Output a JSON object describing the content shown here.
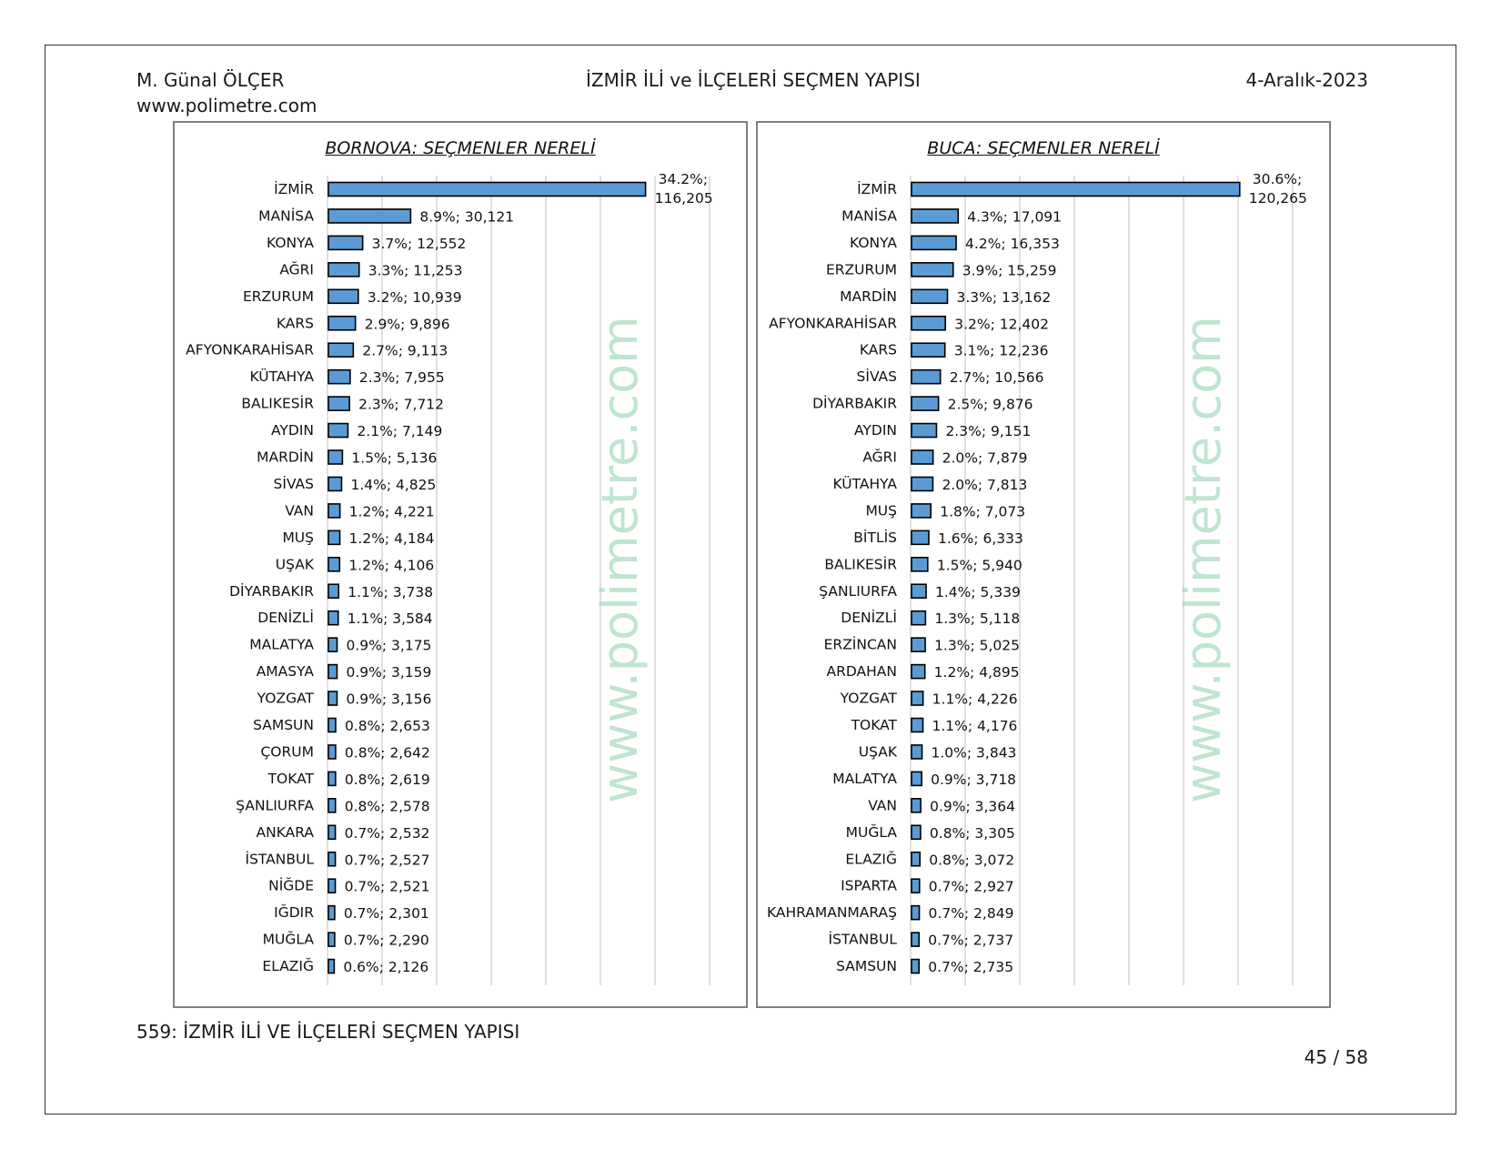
{
  "header": {
    "author": "M. Günal ÖLÇER",
    "website": "www.polimetre.com",
    "title": "İZMİR İLİ ve İLÇELERİ SEÇMEN YAPISI",
    "date": "4-Aralık-2023"
  },
  "footer": {
    "caption": "559: İZMİR İLİ VE İLÇELERİ SEÇMEN YAPISI",
    "page": "45 / 58"
  },
  "watermark": "www.polimetre.com",
  "colors": {
    "bar": "#5B9BD5",
    "bar_border": "#000000",
    "grid": "#d0d0d0",
    "watermark": "#a8dcc0"
  },
  "chart_data": [
    {
      "type": "bar",
      "orientation": "horizontal",
      "title": "BORNOVA: SEÇMENLER NERELİ",
      "grid": true,
      "categories": [
        "İZMİR",
        "MANİSA",
        "KONYA",
        "AĞRI",
        "ERZURUM",
        "KARS",
        "AFYONKARAHİSAR",
        "KÜTAHYA",
        "BALIKESİR",
        "AYDIN",
        "MARDİN",
        "SİVAS",
        "VAN",
        "MUŞ",
        "UŞAK",
        "DİYARBAKIR",
        "DENİZLİ",
        "MALATYA",
        "AMASYA",
        "YOZGAT",
        "SAMSUN",
        "ÇORUM",
        "TOKAT",
        "ŞANLIURFA",
        "ANKARA",
        "İSTANBUL",
        "NİĞDE",
        "IĞDIR",
        "MUĞLA",
        "ELAZIĞ"
      ],
      "values": [
        116205,
        30121,
        12552,
        11253,
        10939,
        9896,
        9113,
        7955,
        7712,
        7149,
        5136,
        4825,
        4221,
        4184,
        4106,
        3738,
        3584,
        3175,
        3159,
        3156,
        2653,
        2642,
        2619,
        2578,
        2532,
        2527,
        2521,
        2301,
        2290,
        2126
      ],
      "percents": [
        "34.2%",
        "8.9%",
        "3.7%",
        "3.3%",
        "3.2%",
        "2.9%",
        "2.7%",
        "2.3%",
        "2.3%",
        "2.1%",
        "1.5%",
        "1.4%",
        "1.2%",
        "1.2%",
        "1.2%",
        "1.1%",
        "1.1%",
        "0.9%",
        "0.9%",
        "0.9%",
        "0.8%",
        "0.8%",
        "0.8%",
        "0.8%",
        "0.7%",
        "0.7%",
        "0.7%",
        "0.7%",
        "0.7%",
        "0.6%"
      ],
      "data_labels": [
        "34.2%; 116,205",
        "8.9%; 30,121",
        "3.7%; 12,552",
        "3.3%; 11,253",
        "3.2%; 10,939",
        "2.9%; 9,896",
        "2.7%; 9,113",
        "2.3%; 7,955",
        "2.3%; 7,712",
        "2.1%; 7,149",
        "1.5%; 5,136",
        "1.4%; 4,825",
        "1.2%; 4,221",
        "1.2%; 4,184",
        "1.2%; 4,106",
        "1.1%; 3,738",
        "1.1%; 3,584",
        "0.9%; 3,175",
        "0.9%; 3,159",
        "0.9%; 3,156",
        "0.8%; 2,653",
        "0.8%; 2,642",
        "0.8%; 2,619",
        "0.8%; 2,578",
        "0.7%; 2,532",
        "0.7%; 2,527",
        "0.7%; 2,521",
        "0.7%; 2,301",
        "0.7%; 2,290",
        "0.6%; 2,126"
      ],
      "xlim": [
        0,
        140000
      ]
    },
    {
      "type": "bar",
      "orientation": "horizontal",
      "title": "BUCA: SEÇMENLER NERELİ",
      "grid": true,
      "categories": [
        "İZMİR",
        "MANİSA",
        "KONYA",
        "ERZURUM",
        "MARDİN",
        "AFYONKARAHİSAR",
        "KARS",
        "SİVAS",
        "DİYARBAKIR",
        "AYDIN",
        "AĞRI",
        "KÜTAHYA",
        "MUŞ",
        "BİTLİS",
        "BALIKESİR",
        "ŞANLIURFA",
        "DENİZLİ",
        "ERZİNCAN",
        "ARDAHAN",
        "YOZGAT",
        "TOKAT",
        "UŞAK",
        "MALATYA",
        "VAN",
        "MUĞLA",
        "ELAZIĞ",
        "ISPARTA",
        "KAHRAMANMARAŞ",
        "İSTANBUL",
        "SAMSUN"
      ],
      "values": [
        120265,
        17091,
        16353,
        15259,
        13162,
        12402,
        12236,
        10566,
        9876,
        9151,
        7879,
        7813,
        7073,
        6333,
        5940,
        5339,
        5118,
        5025,
        4895,
        4226,
        4176,
        3843,
        3718,
        3364,
        3305,
        3072,
        2927,
        2849,
        2737,
        2735
      ],
      "percents": [
        "30.6%",
        "4.3%",
        "4.2%",
        "3.9%",
        "3.3%",
        "3.2%",
        "3.1%",
        "2.7%",
        "2.5%",
        "2.3%",
        "2.0%",
        "2.0%",
        "1.8%",
        "1.6%",
        "1.5%",
        "1.4%",
        "1.3%",
        "1.3%",
        "1.2%",
        "1.1%",
        "1.1%",
        "1.0%",
        "0.9%",
        "0.9%",
        "0.8%",
        "0.8%",
        "0.7%",
        "0.7%",
        "0.7%",
        "0.7%"
      ],
      "data_labels": [
        "30.6%; 120,265",
        "4.3%; 17,091",
        "4.2%; 16,353",
        "3.9%; 15,259",
        "3.3%; 13,162",
        "3.2%; 12,402",
        "3.1%; 12,236",
        "2.7%; 10,566",
        "2.5%; 9,876",
        "2.3%; 9,151",
        "2.0%; 7,879",
        "2.0%; 7,813",
        "1.8%; 7,073",
        "1.6%; 6,333",
        "1.5%; 5,940",
        "1.4%; 5,339",
        "1.3%; 5,118",
        "1.3%; 5,025",
        "1.2%; 4,895",
        "1.1%; 4,226",
        "1.1%; 4,176",
        "1.0%; 3,843",
        "0.9%; 3,718",
        "0.9%; 3,364",
        "0.8%; 3,305",
        "0.8%; 3,072",
        "0.7%; 2,927",
        "0.7%; 2,849",
        "0.7%; 2,737",
        "0.7%; 2,735"
      ],
      "xlim": [
        0,
        140000
      ]
    }
  ]
}
